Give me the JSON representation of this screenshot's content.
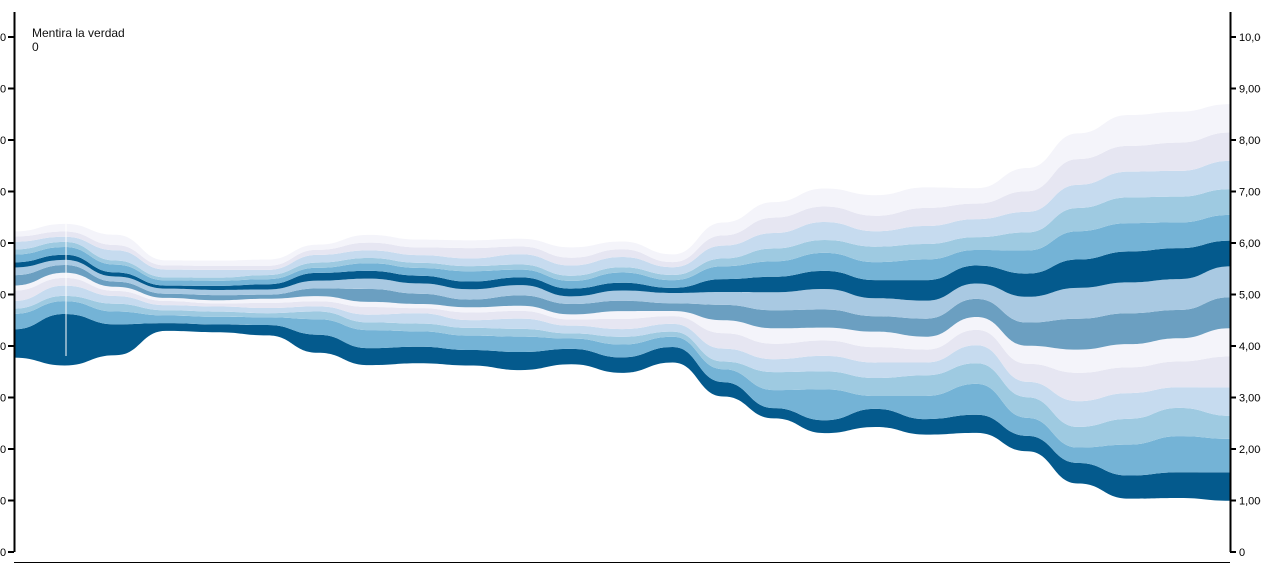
{
  "tooltip": {
    "title": "Mentira la verdad",
    "value": "0"
  },
  "chart_data": {
    "type": "area",
    "subtype": "streamgraph",
    "x": [
      0,
      1,
      2,
      3,
      4,
      5,
      6,
      7,
      8,
      9,
      10,
      11,
      12,
      13,
      14,
      15,
      16,
      17,
      18,
      19,
      20,
      21,
      22,
      23,
      24
    ],
    "ylim": [
      0,
      10000
    ],
    "y_ticks_right": [
      "0",
      "1,000",
      "2,000",
      "3,000",
      "4,000",
      "5,000",
      "6,000",
      "7,000",
      "8,000",
      "9,000",
      "10,000"
    ],
    "y_ticks_left": [
      "0",
      "0",
      "0",
      "0",
      "0",
      "0",
      "0",
      "0",
      "0",
      "0",
      "0"
    ],
    "grid": false,
    "colors": [
      "#045a8d",
      "#74b3d6",
      "#9ecae1",
      "#c6dbef",
      "#e6e6f2",
      "#f4f4fa",
      "#6b9fc1",
      "#a9c9e2"
    ],
    "series": [
      {
        "values": [
          550,
          1000,
          600,
          150,
          150,
          200,
          350,
          330,
          320,
          300,
          350,
          300,
          300,
          300,
          280,
          200,
          250,
          350,
          300,
          350,
          300,
          400,
          450,
          500,
          550
        ]
      },
      {
        "values": [
          300,
          250,
          250,
          150,
          150,
          150,
          300,
          350,
          300,
          280,
          300,
          200,
          250,
          200,
          250,
          350,
          600,
          250,
          450,
          600,
          350,
          300,
          600,
          700,
          650
        ]
      },
      {
        "values": [
          100,
          100,
          150,
          100,
          100,
          80,
          150,
          150,
          150,
          150,
          150,
          100,
          150,
          100,
          150,
          350,
          350,
          350,
          400,
          400,
          400,
          400,
          500,
          550,
          450
        ]
      },
      {
        "values": [
          150,
          200,
          150,
          100,
          100,
          100,
          100,
          150,
          200,
          150,
          200,
          150,
          150,
          150,
          250,
          250,
          300,
          300,
          250,
          350,
          300,
          500,
          500,
          400,
          550
        ]
      },
      {
        "values": [
          200,
          150,
          100,
          80,
          60,
          100,
          100,
          150,
          100,
          150,
          150,
          120,
          200,
          150,
          300,
          300,
          300,
          300,
          250,
          300,
          350,
          550,
          500,
          500,
          600
        ]
      },
      {
        "values": [
          100,
          100,
          80,
          60,
          60,
          80,
          100,
          100,
          80,
          100,
          100,
          100,
          150,
          100,
          250,
          300,
          250,
          300,
          250,
          250,
          350,
          450,
          450,
          450,
          550
        ]
      },
      {
        "values": [
          200,
          150,
          100,
          80,
          100,
          80,
          150,
          250,
          200,
          150,
          200,
          200,
          200,
          150,
          300,
          350,
          350,
          300,
          350,
          350,
          450,
          600,
          600,
          550,
          600
        ]
      },
      {
        "values": [
          150,
          100,
          100,
          100,
          100,
          100,
          150,
          200,
          200,
          200,
          200,
          150,
          200,
          200,
          250,
          350,
          400,
          350,
          350,
          300,
          500,
          600,
          600,
          600,
          600
        ]
      },
      {
        "values": [
          100,
          100,
          80,
          60,
          80,
          100,
          150,
          150,
          150,
          150,
          150,
          150,
          150,
          100,
          250,
          300,
          350,
          350,
          400,
          350,
          450,
          550,
          600,
          600,
          500
        ]
      },
      {
        "values": [
          150,
          150,
          150,
          100,
          100,
          100,
          100,
          150,
          150,
          200,
          150,
          150,
          200,
          150,
          250,
          300,
          350,
          350,
          400,
          300,
          450,
          550,
          550,
          500,
          500
        ]
      },
      {
        "values": [
          100,
          100,
          80,
          60,
          60,
          80,
          100,
          100,
          100,
          100,
          100,
          100,
          100,
          100,
          150,
          250,
          250,
          300,
          300,
          250,
          350,
          450,
          500,
          500,
          500
        ]
      },
      {
        "values": [
          150,
          100,
          200,
          150,
          150,
          100,
          150,
          150,
          150,
          150,
          200,
          200,
          200,
          150,
          250,
          300,
          350,
          300,
          350,
          350,
          400,
          450,
          500,
          500,
          550
        ]
      },
      {
        "values": [
          100,
          100,
          100,
          80,
          80,
          80,
          100,
          150,
          150,
          200,
          150,
          150,
          150,
          100,
          200,
          300,
          300,
          300,
          350,
          300,
          400,
          500,
          500,
          550,
          550
        ]
      },
      {
        "values": [
          100,
          150,
          200,
          100,
          100,
          120,
          100,
          150,
          150,
          150,
          150,
          200,
          150,
          150,
          250,
          300,
          350,
          400,
          400,
          300,
          450,
          500,
          600,
          600,
          550
        ]
      }
    ]
  }
}
